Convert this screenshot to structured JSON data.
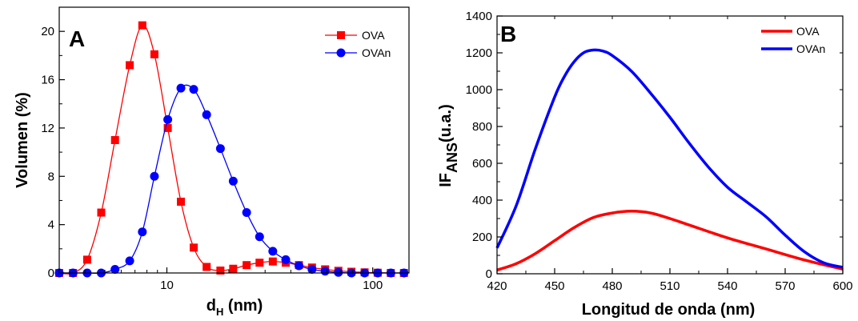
{
  "chart_data": [
    {
      "type": "scatter",
      "panel_label": "A",
      "xlabel_main": "d",
      "xlabel_sub": "H",
      "xlabel_unit": " (nm)",
      "ylabel": "Volumen (%)",
      "xscale": "log",
      "xlim": [
        3,
        150
      ],
      "ylim": [
        0,
        22
      ],
      "x_ticks": [
        10,
        100
      ],
      "y_ticks": [
        0,
        4,
        8,
        12,
        16,
        20
      ],
      "legend_position": "top-right",
      "series": [
        {
          "name": "OVA",
          "color": "#ff0000",
          "marker": "square",
          "x": [
            3.0,
            3.5,
            4.1,
            4.8,
            5.6,
            6.6,
            7.6,
            8.7,
            10.1,
            11.7,
            13.5,
            15.6,
            18.2,
            21.0,
            24.4,
            28.2,
            32.7,
            37.8,
            43.8,
            50.7,
            58.7,
            68.1,
            78.8,
            91.3,
            105.7,
            122.4,
            141.8
          ],
          "y": [
            0,
            0,
            1.1,
            5.0,
            11.0,
            17.2,
            20.5,
            18.1,
            12.0,
            5.9,
            2.1,
            0.5,
            0.2,
            0.35,
            0.65,
            0.85,
            0.95,
            0.85,
            0.65,
            0.45,
            0.3,
            0.18,
            0.1,
            0.05,
            0.02,
            0,
            0
          ]
        },
        {
          "name": "OVAn",
          "color": "#0000ff",
          "marker": "circle",
          "x": [
            3.0,
            3.5,
            4.1,
            4.8,
            5.6,
            6.6,
            7.6,
            8.7,
            10.1,
            11.7,
            13.5,
            15.6,
            18.2,
            21.0,
            24.4,
            28.2,
            32.7,
            37.8,
            43.8,
            50.7,
            58.7,
            68.1,
            78.8,
            91.3,
            105.7,
            122.4,
            141.8
          ],
          "y": [
            0,
            0,
            0,
            0,
            0.3,
            1.0,
            3.4,
            8.0,
            12.7,
            15.3,
            15.2,
            13.1,
            10.3,
            7.6,
            5.0,
            3.0,
            1.8,
            1.1,
            0.6,
            0.3,
            0.15,
            0.05,
            0,
            0,
            0,
            0,
            0
          ]
        }
      ]
    },
    {
      "type": "line",
      "panel_label": "B",
      "xlabel": "Longitud de onda (nm)",
      "ylabel_main": "IF",
      "ylabel_sub": "ANS",
      "ylabel_unit": "(u.a.)",
      "xlim": [
        420,
        600
      ],
      "ylim": [
        0,
        1400
      ],
      "x_ticks": [
        420,
        450,
        480,
        510,
        540,
        570,
        600
      ],
      "y_ticks": [
        0,
        200,
        400,
        600,
        800,
        1000,
        1200,
        1400
      ],
      "legend_position": "top-right",
      "series": [
        {
          "name": "OVA",
          "color": "#ff0000",
          "x": [
            420,
            430,
            440,
            450,
            460,
            470,
            480,
            490,
            500,
            510,
            520,
            540,
            560,
            580,
            600
          ],
          "y": [
            20,
            55,
            110,
            180,
            250,
            305,
            330,
            340,
            330,
            300,
            265,
            195,
            135,
            75,
            25
          ]
        },
        {
          "name": "OVAn",
          "color": "#0000ff",
          "x": [
            420,
            430,
            440,
            450,
            455,
            460,
            465,
            470,
            475,
            480,
            490,
            500,
            510,
            520,
            530,
            540,
            550,
            560,
            570,
            580,
            590,
            600
          ],
          "y": [
            140,
            370,
            680,
            960,
            1070,
            1150,
            1200,
            1215,
            1210,
            1185,
            1100,
            980,
            850,
            710,
            580,
            470,
            390,
            310,
            210,
            120,
            60,
            35
          ]
        }
      ]
    }
  ]
}
